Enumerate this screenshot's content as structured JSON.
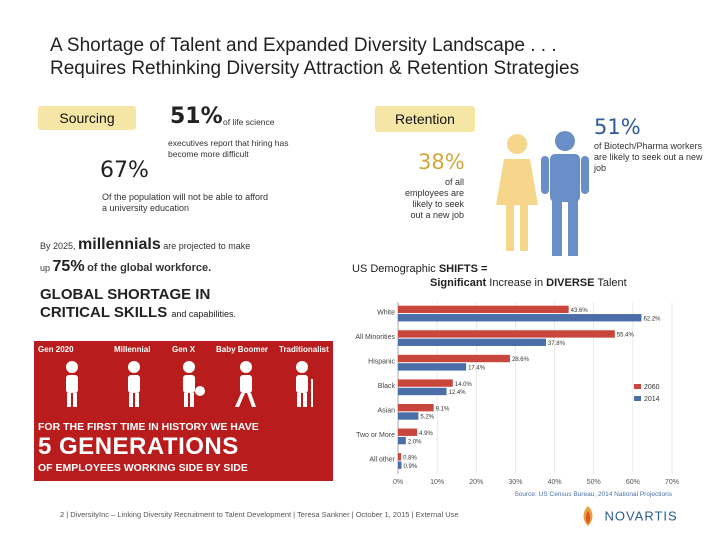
{
  "title": {
    "line1": "A Shortage of Talent and Expanded Diversity Landscape . . .",
    "line2": "Requires Rethinking Diversity Attraction & Retention Strategies"
  },
  "sourcing": {
    "label": "Sourcing",
    "stat1_pct": "51%",
    "stat1_inline": "of life science",
    "stat1_desc": "executives report that hiring has become more difficult",
    "stat2_pct": "67%",
    "stat2_desc": "Of the population will not be able to afford a university education",
    "mill_pre": "By 2025,",
    "mill_word": "millennials",
    "mill_post": "are projected to make",
    "mill_up": "up",
    "mill_pct": "75%",
    "mill_end": "of the global workforce.",
    "global_line1": "GLOBAL SHORTAGE IN",
    "global_line2": "CRITICAL SKILLS",
    "global_tail": "and capabilities."
  },
  "retention": {
    "label": "Retention",
    "pct1": "38%",
    "desc1": "of all employees are likely to seek out a new job",
    "pct2": "51%",
    "desc2": "of Biotech/Pharma workers are likely to seek out a new job"
  },
  "generations": {
    "labels": [
      "Gen 2020",
      "Millennial",
      "Gen X",
      "Baby Boomer",
      "Traditionalist"
    ],
    "banner_line1": "FOR THE FIRST TIME IN HISTORY WE HAVE",
    "banner_line2": "5 GENERATIONS",
    "banner_line3": "OF EMPLOYEES WORKING SIDE BY SIDE"
  },
  "demographic": {
    "h_pre": "US Demographic",
    "h_bold": "SHIFTS =",
    "sub_b1": "Significant",
    "sub_m": "Increase in",
    "sub_b2": "DIVERSE",
    "sub_end": "Talent"
  },
  "chart_data": {
    "type": "bar",
    "orientation": "horizontal",
    "categories": [
      "White",
      "All Minorities",
      "Hispanic",
      "Black",
      "Asian",
      "Two or More",
      "All other"
    ],
    "series": [
      {
        "name": "2060",
        "color": "#c8463c",
        "values": [
          43.6,
          55.4,
          28.6,
          14.0,
          9.1,
          4.9,
          0.8
        ]
      },
      {
        "name": "2014",
        "color": "#4a6fa8",
        "values": [
          62.2,
          37.8,
          17.4,
          12.4,
          5.2,
          2.0,
          0.9
        ]
      }
    ],
    "value_labels_2060": [
      "43.6%",
      "55.4%",
      "28.6%",
      "14.0%",
      "9.1%",
      "4.9%",
      "0.8%"
    ],
    "value_labels_2014": [
      "62.2%",
      "37.8%",
      "17.4%",
      "12.4%",
      "5.2%",
      "2.0%",
      "0.9%"
    ],
    "x_ticks": [
      "0%",
      "10%",
      "20%",
      "30%",
      "40%",
      "50%",
      "60%",
      "70%"
    ],
    "xlim": [
      0,
      70
    ],
    "legend": [
      "2060",
      "2014"
    ],
    "source": "Source: US Census Bureau, 2014 National Projections"
  },
  "footer": {
    "text": "2 | DiversityInc – Linking Diversity Recruitment to Talent Development | Teresa Sankner | October 1, 2015 | External Use",
    "logo": "NOVARTIS"
  }
}
